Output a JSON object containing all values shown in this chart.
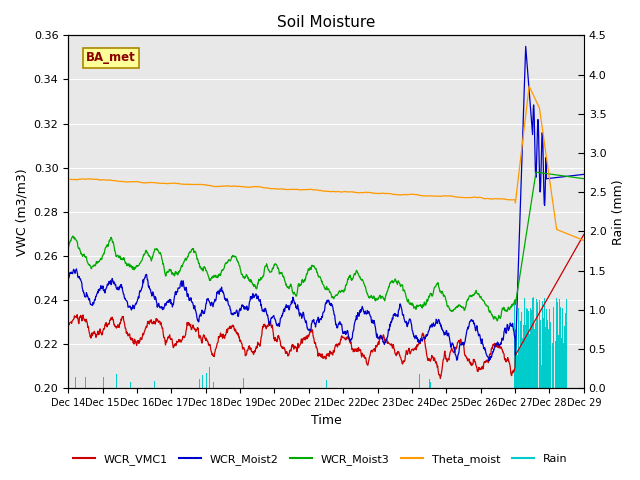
{
  "title": "Soil Moisture",
  "xlabel": "Time",
  "ylabel_left": "VWC (m3/m3)",
  "ylabel_right": "Rain (mm)",
  "ylim_left": [
    0.2,
    0.36
  ],
  "ylim_right": [
    0.0,
    4.5
  ],
  "yticks_left": [
    0.2,
    0.22,
    0.24,
    0.26,
    0.28,
    0.3,
    0.32,
    0.34,
    0.36
  ],
  "yticks_right": [
    0.0,
    0.5,
    1.0,
    1.5,
    2.0,
    2.5,
    3.0,
    3.5,
    4.0,
    4.5
  ],
  "background_color": "#e8e8e8",
  "label_box": "BA_met",
  "colors": {
    "WCR_VMC1": "#cc0000",
    "WCR_Moist2": "#0000cc",
    "WCR_Moist3": "#00aa00",
    "Theta_moist": "#ff9900",
    "Rain": "#00cccc"
  },
  "legend_labels": [
    "WCR_VMC1",
    "WCR_Moist2",
    "WCR_Moist3",
    "Theta_moist",
    "Rain"
  ],
  "figsize": [
    6.4,
    4.8
  ],
  "dpi": 100
}
